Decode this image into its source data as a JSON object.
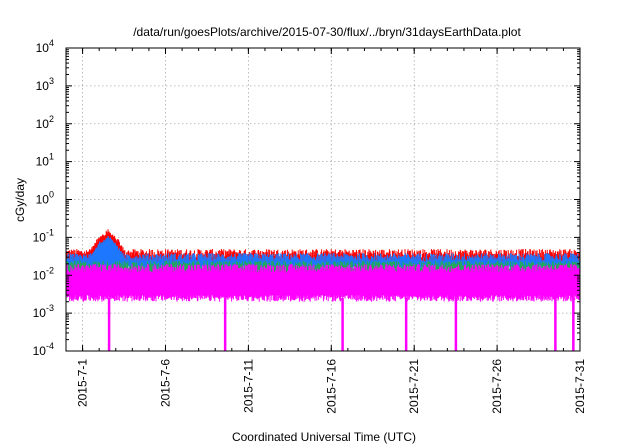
{
  "chart_data": {
    "type": "line",
    "title": "/data/run/goesPlots/archive/2015-07-30/flux/../bryn/31daysEarthData.plot",
    "xlabel": "Coordinated Universal Time (UTC)",
    "ylabel": "cGy/day",
    "yscale": "log",
    "ylim": [
      0.0001,
      10000
    ],
    "xlim": [
      "2015-06-30",
      "2015-07-31"
    ],
    "grid": true,
    "x_ticks": [
      "2015-7-1",
      "2015-7-6",
      "2015-7-11",
      "2015-7-16",
      "2015-7-21",
      "2015-7-26",
      "2015-7-31"
    ],
    "y_ticks": [
      {
        "value": 0.0001,
        "base": "10",
        "exp": "-4"
      },
      {
        "value": 0.001,
        "base": "10",
        "exp": "-3"
      },
      {
        "value": 0.01,
        "base": "10",
        "exp": "-2"
      },
      {
        "value": 0.1,
        "base": "10",
        "exp": "-1"
      },
      {
        "value": 1,
        "base": "10",
        "exp": "0"
      },
      {
        "value": 10,
        "base": "10",
        "exp": "1"
      },
      {
        "value": 100,
        "base": "10",
        "exp": "2"
      },
      {
        "value": 1000,
        "base": "10",
        "exp": "3"
      },
      {
        "value": 10000,
        "base": "10",
        "exp": "4"
      }
    ],
    "series": [
      {
        "color": "#ff0000",
        "typical_max": 0.045,
        "peak": {
          "date": "2015-07-02",
          "value": 0.15
        },
        "typical_min": 0.02
      },
      {
        "color": "#1e78ff",
        "typical_max": 0.035,
        "peak": {
          "date": "2015-07-02",
          "value": 0.1
        },
        "typical_min": 0.015
      },
      {
        "color": "#22aa55",
        "typical_max": 0.022,
        "typical_min": 0.008
      },
      {
        "color": "#ff00ff",
        "typical_max": 0.018,
        "typical_min": 0.0025,
        "dropouts": [
          "2015-07-02T14:00",
          "2015-07-09T14:00",
          "2015-07-16T16:00",
          "2015-07-20T12:00",
          "2015-07-23T12:00",
          "2015-07-29T12:00",
          "2015-07-30T14:00"
        ]
      }
    ]
  }
}
